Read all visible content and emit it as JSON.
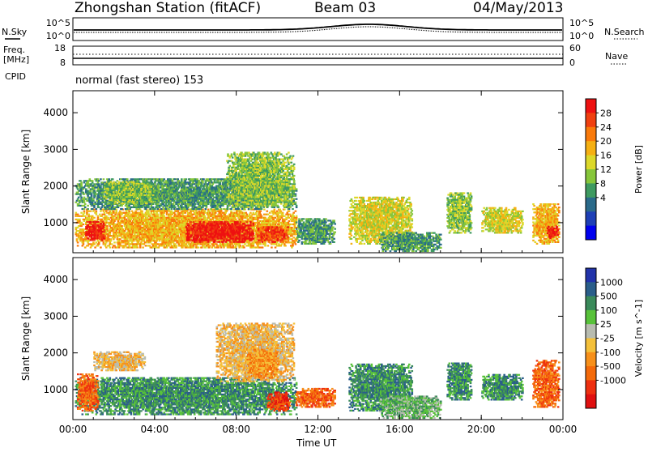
{
  "header": {
    "station": "Zhongshan Station (fitACF)",
    "beam": "Beam 03",
    "date": "04/May/2013"
  },
  "status_panels": {
    "nsky_label": "N.Sky",
    "nsearch_label": "N.Search",
    "noise_ticks": [
      "10^5",
      "10^0"
    ],
    "freq_label": "Freq.",
    "freq_unit": "[MHz]",
    "freq_ticks": [
      "18",
      "8"
    ],
    "nave_label": "Nave",
    "nave_ticks": [
      "60",
      "0"
    ],
    "cpid_label": "CPID",
    "cpid_value": "normal (fast stereo) 153"
  },
  "chart_data": [
    {
      "type": "heatmap",
      "name": "power-panel",
      "xlabel": "",
      "ylabel": "Slant Range [km]",
      "xlim": [
        0,
        24
      ],
      "ylim": [
        180,
        4600
      ],
      "x_ticks": [
        "00:00",
        "04:00",
        "08:00",
        "12:00",
        "16:00",
        "20:00",
        "00:00"
      ],
      "y_ticks": [
        1000,
        2000,
        3000,
        4000
      ],
      "colorbar": {
        "label": "Power [dB]",
        "ticks": [
          "28",
          "24",
          "20",
          "16",
          "12",
          "8",
          "4"
        ],
        "colors": [
          "#ee1111",
          "#f04010",
          "#f97a0a",
          "#f5b013",
          "#dcd82a",
          "#86c63a",
          "#3e9a60",
          "#2a6a8a",
          "#1e3fb6",
          "#0000ee"
        ]
      },
      "blobs": [
        {
          "t0": 0.1,
          "t1": 10.9,
          "r0": 300,
          "r1": 1350,
          "level": 6
        },
        {
          "t0": 0.1,
          "t1": 10.9,
          "r0": 1350,
          "r1": 2200,
          "level": 3
        },
        {
          "t0": 1.5,
          "t1": 4.0,
          "r0": 1500,
          "r1": 2100,
          "level": 4
        },
        {
          "t0": 7.5,
          "t1": 10.8,
          "r0": 1400,
          "r1": 2900,
          "level": 4
        },
        {
          "t0": 0.6,
          "t1": 1.5,
          "r0": 500,
          "r1": 1000,
          "level": 9
        },
        {
          "t0": 5.5,
          "t1": 8.8,
          "r0": 450,
          "r1": 1000,
          "level": 9
        },
        {
          "t0": 9.0,
          "t1": 10.5,
          "r0": 450,
          "r1": 900,
          "level": 8
        },
        {
          "t0": 10.9,
          "t1": 12.8,
          "r0": 400,
          "r1": 1100,
          "level": 3
        },
        {
          "t0": 13.5,
          "t1": 16.6,
          "r0": 400,
          "r1": 1700,
          "level": 5
        },
        {
          "t0": 15.0,
          "t1": 18.0,
          "r0": 200,
          "r1": 700,
          "level": 3
        },
        {
          "t0": 18.3,
          "t1": 19.5,
          "r0": 700,
          "r1": 1800,
          "level": 4
        },
        {
          "t0": 20.0,
          "t1": 22.0,
          "r0": 700,
          "r1": 1400,
          "level": 5
        },
        {
          "t0": 22.5,
          "t1": 23.8,
          "r0": 400,
          "r1": 1500,
          "level": 6
        },
        {
          "t0": 23.2,
          "t1": 23.7,
          "r0": 550,
          "r1": 900,
          "level": 9
        }
      ]
    },
    {
      "type": "heatmap",
      "name": "velocity-panel",
      "xlabel": "Time UT",
      "ylabel": "Slant Range [km]",
      "xlim": [
        0,
        24
      ],
      "ylim": [
        180,
        4600
      ],
      "x_ticks": [
        "00:00",
        "04:00",
        "08:00",
        "12:00",
        "16:00",
        "20:00",
        "00:00"
      ],
      "y_ticks": [
        1000,
        2000,
        3000,
        4000
      ],
      "colorbar": {
        "label": "Velocity [m s^-1]",
        "ticks": [
          "1000",
          "500",
          "100",
          "25",
          "-25",
          "-100",
          "-500",
          "-1000"
        ],
        "colors": [
          "#2233aa",
          "#2a5e8a",
          "#3a8a5a",
          "#58c23a",
          "#b8bcb0",
          "#f4c03a",
          "#f7901a",
          "#f46a0a",
          "#ee3010",
          "#e01010"
        ]
      },
      "blobs": [
        {
          "t0": 0.1,
          "t1": 10.9,
          "r0": 300,
          "r1": 1300,
          "level": 7
        },
        {
          "t0": 1.0,
          "t1": 3.5,
          "r0": 1500,
          "r1": 2000,
          "level": 4
        },
        {
          "t0": 7.0,
          "t1": 10.8,
          "r0": 1200,
          "r1": 2800,
          "level": 4
        },
        {
          "t0": 8.5,
          "t1": 10.0,
          "r0": 1300,
          "r1": 2100,
          "level": 3
        },
        {
          "t0": 0.2,
          "t1": 1.2,
          "r0": 400,
          "r1": 1400,
          "level": 2
        },
        {
          "t0": 9.5,
          "t1": 10.6,
          "r0": 400,
          "r1": 900,
          "level": 1
        },
        {
          "t0": 10.9,
          "t1": 12.8,
          "r0": 500,
          "r1": 1000,
          "level": 2
        },
        {
          "t0": 13.5,
          "t1": 16.6,
          "r0": 400,
          "r1": 1700,
          "level": 7
        },
        {
          "t0": 15.0,
          "t1": 18.0,
          "r0": 200,
          "r1": 800,
          "level": 6
        },
        {
          "t0": 18.3,
          "t1": 19.5,
          "r0": 700,
          "r1": 1700,
          "level": 7
        },
        {
          "t0": 20.0,
          "t1": 22.0,
          "r0": 700,
          "r1": 1400,
          "level": 7
        },
        {
          "t0": 22.5,
          "t1": 23.8,
          "r0": 500,
          "r1": 1800,
          "level": 2
        }
      ]
    }
  ]
}
